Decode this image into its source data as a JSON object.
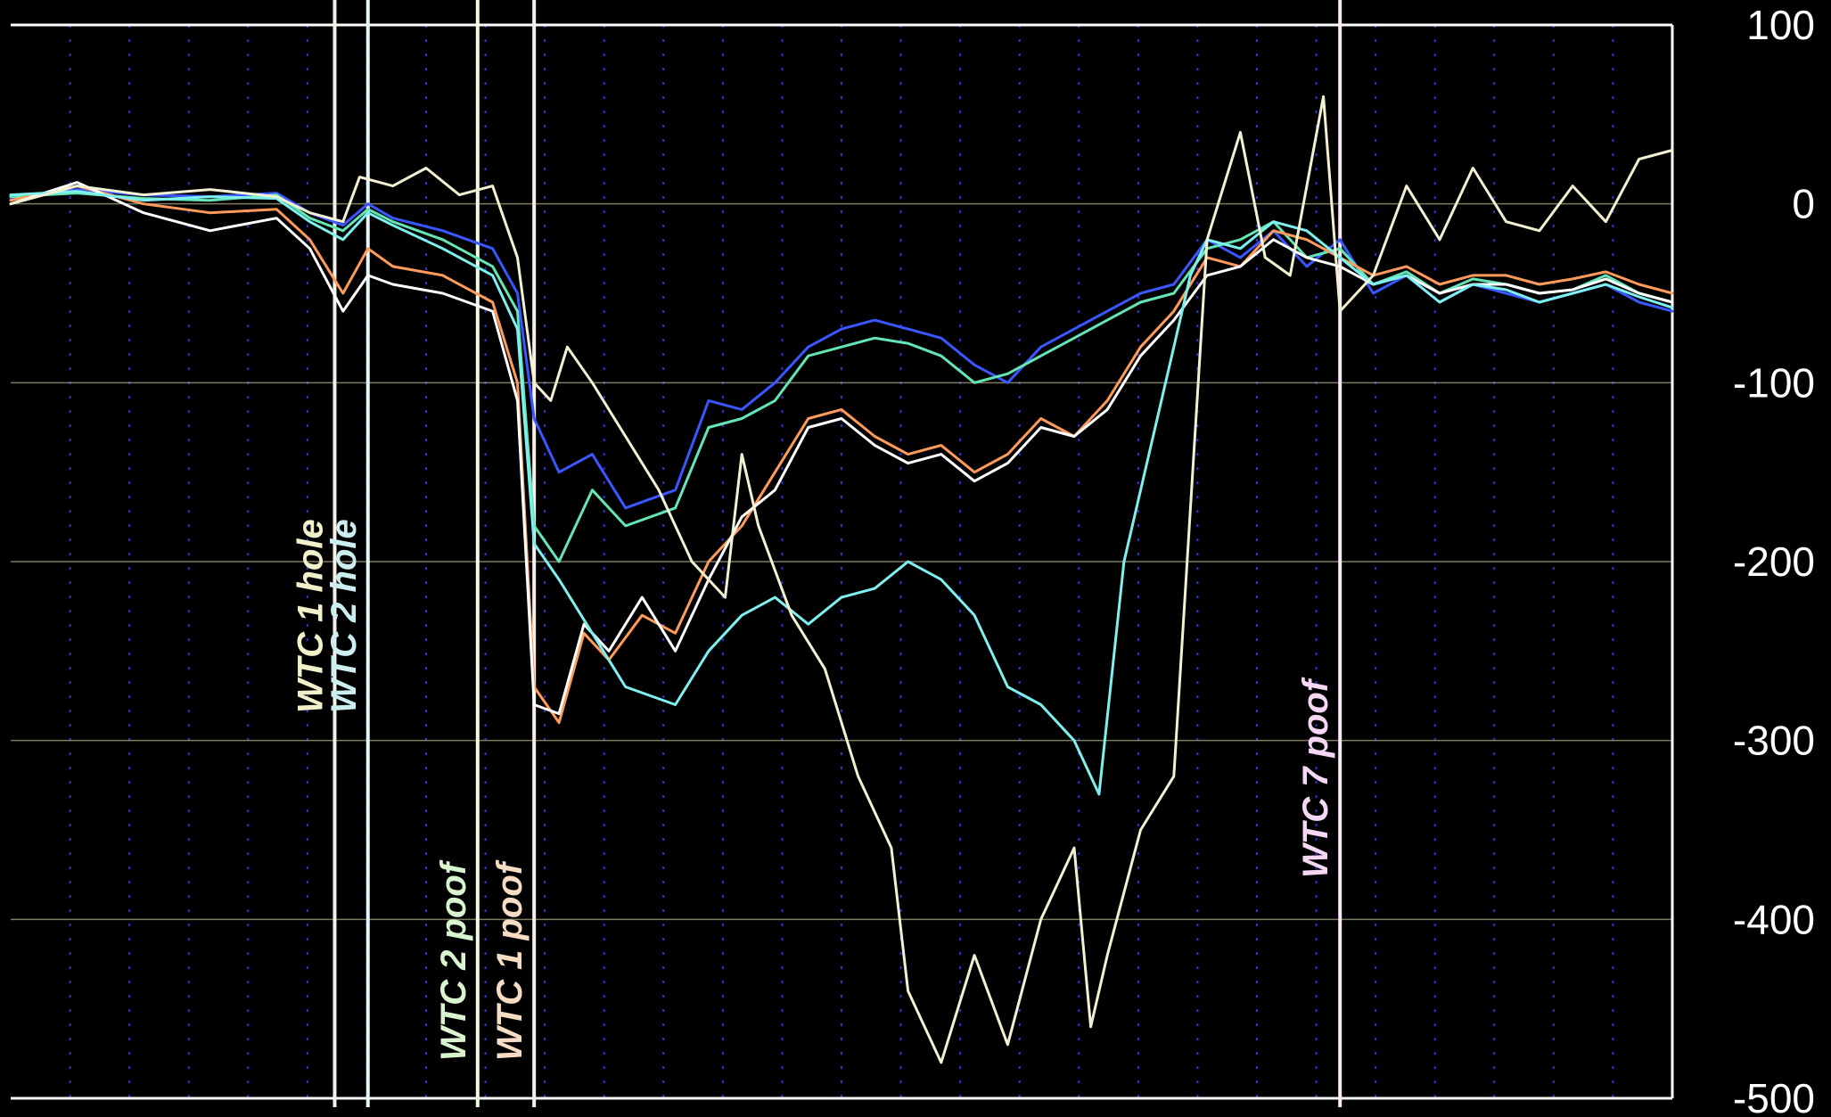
{
  "chart_data": {
    "type": "line",
    "title": "",
    "xlabel": "",
    "ylabel": "",
    "ylim": [
      -500,
      100
    ],
    "y_ticks": [
      "100",
      "0",
      "-100",
      "-200",
      "-300",
      "-400",
      "-500"
    ],
    "y_axis_position": "right",
    "grid": true,
    "background_color": "#000000",
    "x_domain": [
      0,
      1000
    ],
    "events": [
      {
        "label": "WTC 1 hole",
        "x": 195,
        "color": "#f2f0c8",
        "line_color": "#f4f2e8"
      },
      {
        "label": "WTC 2 hole",
        "x": 215,
        "color": "#cdeef0",
        "line_color": "#e4f6f6"
      },
      {
        "label": "WTC 2 poof",
        "x": 281,
        "color": "#d8f5d0",
        "line_color": "#f0fae8"
      },
      {
        "label": "WTC 1 poof",
        "x": 315,
        "color": "#f7dcc4",
        "line_color": "#f8f0e8"
      },
      {
        "label": "WTC 7 poof",
        "x": 800,
        "color": "#f5d6f5",
        "line_color": "#fbe6fb"
      }
    ],
    "series": [
      {
        "color": "#3a56ff",
        "points": [
          [
            0,
            3
          ],
          [
            40,
            8
          ],
          [
            80,
            5
          ],
          [
            120,
            4
          ],
          [
            160,
            6
          ],
          [
            180,
            -5
          ],
          [
            200,
            -12
          ],
          [
            215,
            0
          ],
          [
            230,
            -8
          ],
          [
            260,
            -15
          ],
          [
            290,
            -25
          ],
          [
            305,
            -50
          ],
          [
            315,
            -120
          ],
          [
            330,
            -150
          ],
          [
            350,
            -140
          ],
          [
            370,
            -170
          ],
          [
            400,
            -160
          ],
          [
            420,
            -110
          ],
          [
            440,
            -115
          ],
          [
            460,
            -100
          ],
          [
            480,
            -80
          ],
          [
            500,
            -70
          ],
          [
            520,
            -65
          ],
          [
            540,
            -70
          ],
          [
            560,
            -75
          ],
          [
            580,
            -90
          ],
          [
            600,
            -100
          ],
          [
            620,
            -80
          ],
          [
            640,
            -70
          ],
          [
            660,
            -60
          ],
          [
            680,
            -50
          ],
          [
            700,
            -45
          ],
          [
            720,
            -20
          ],
          [
            740,
            -30
          ],
          [
            760,
            -15
          ],
          [
            780,
            -35
          ],
          [
            800,
            -20
          ],
          [
            820,
            -50
          ],
          [
            840,
            -40
          ],
          [
            860,
            -55
          ],
          [
            880,
            -45
          ],
          [
            900,
            -50
          ],
          [
            920,
            -55
          ],
          [
            940,
            -50
          ],
          [
            960,
            -45
          ],
          [
            980,
            -55
          ],
          [
            1000,
            -60
          ]
        ]
      },
      {
        "color": "#64e6b4",
        "points": [
          [
            0,
            4
          ],
          [
            40,
            6
          ],
          [
            80,
            3
          ],
          [
            120,
            2
          ],
          [
            160,
            5
          ],
          [
            180,
            -8
          ],
          [
            200,
            -15
          ],
          [
            215,
            -3
          ],
          [
            230,
            -10
          ],
          [
            260,
            -20
          ],
          [
            290,
            -35
          ],
          [
            305,
            -60
          ],
          [
            315,
            -180
          ],
          [
            330,
            -200
          ],
          [
            350,
            -160
          ],
          [
            370,
            -180
          ],
          [
            400,
            -170
          ],
          [
            420,
            -125
          ],
          [
            440,
            -120
          ],
          [
            460,
            -110
          ],
          [
            480,
            -85
          ],
          [
            500,
            -80
          ],
          [
            520,
            -75
          ],
          [
            540,
            -78
          ],
          [
            560,
            -85
          ],
          [
            580,
            -100
          ],
          [
            600,
            -95
          ],
          [
            620,
            -85
          ],
          [
            640,
            -75
          ],
          [
            660,
            -65
          ],
          [
            680,
            -55
          ],
          [
            700,
            -50
          ],
          [
            720,
            -25
          ],
          [
            740,
            -20
          ],
          [
            760,
            -10
          ],
          [
            780,
            -30
          ],
          [
            800,
            -25
          ],
          [
            820,
            -45
          ],
          [
            840,
            -38
          ],
          [
            860,
            -50
          ],
          [
            880,
            -42
          ],
          [
            900,
            -45
          ],
          [
            920,
            -50
          ],
          [
            940,
            -48
          ],
          [
            960,
            -40
          ],
          [
            980,
            -50
          ],
          [
            1000,
            -55
          ]
        ]
      },
      {
        "color": "#ff9b5a",
        "points": [
          [
            0,
            2
          ],
          [
            40,
            10
          ],
          [
            80,
            0
          ],
          [
            120,
            -5
          ],
          [
            160,
            -3
          ],
          [
            180,
            -20
          ],
          [
            200,
            -50
          ],
          [
            215,
            -25
          ],
          [
            230,
            -35
          ],
          [
            260,
            -40
          ],
          [
            290,
            -55
          ],
          [
            305,
            -100
          ],
          [
            315,
            -270
          ],
          [
            330,
            -290
          ],
          [
            345,
            -240
          ],
          [
            360,
            -255
          ],
          [
            380,
            -230
          ],
          [
            400,
            -240
          ],
          [
            420,
            -200
          ],
          [
            440,
            -180
          ],
          [
            460,
            -150
          ],
          [
            480,
            -120
          ],
          [
            500,
            -115
          ],
          [
            520,
            -130
          ],
          [
            540,
            -140
          ],
          [
            560,
            -135
          ],
          [
            580,
            -150
          ],
          [
            600,
            -140
          ],
          [
            620,
            -120
          ],
          [
            640,
            -130
          ],
          [
            660,
            -110
          ],
          [
            680,
            -80
          ],
          [
            700,
            -60
          ],
          [
            720,
            -30
          ],
          [
            740,
            -35
          ],
          [
            760,
            -15
          ],
          [
            780,
            -20
          ],
          [
            800,
            -30
          ],
          [
            820,
            -40
          ],
          [
            840,
            -35
          ],
          [
            860,
            -45
          ],
          [
            880,
            -40
          ],
          [
            900,
            -40
          ],
          [
            920,
            -45
          ],
          [
            940,
            -42
          ],
          [
            960,
            -38
          ],
          [
            980,
            -45
          ],
          [
            1000,
            -50
          ]
        ]
      },
      {
        "color": "#ffffff",
        "points": [
          [
            0,
            0
          ],
          [
            40,
            12
          ],
          [
            80,
            -5
          ],
          [
            120,
            -15
          ],
          [
            160,
            -8
          ],
          [
            180,
            -25
          ],
          [
            200,
            -60
          ],
          [
            215,
            -40
          ],
          [
            230,
            -45
          ],
          [
            260,
            -50
          ],
          [
            290,
            -60
          ],
          [
            305,
            -110
          ],
          [
            315,
            -280
          ],
          [
            330,
            -285
          ],
          [
            345,
            -235
          ],
          [
            360,
            -250
          ],
          [
            380,
            -220
          ],
          [
            400,
            -250
          ],
          [
            420,
            -210
          ],
          [
            440,
            -175
          ],
          [
            460,
            -160
          ],
          [
            480,
            -125
          ],
          [
            500,
            -120
          ],
          [
            520,
            -135
          ],
          [
            540,
            -145
          ],
          [
            560,
            -140
          ],
          [
            580,
            -155
          ],
          [
            600,
            -145
          ],
          [
            620,
            -125
          ],
          [
            640,
            -130
          ],
          [
            660,
            -115
          ],
          [
            680,
            -85
          ],
          [
            700,
            -65
          ],
          [
            720,
            -40
          ],
          [
            740,
            -35
          ],
          [
            760,
            -20
          ],
          [
            780,
            -30
          ],
          [
            800,
            -35
          ],
          [
            820,
            -45
          ],
          [
            840,
            -40
          ],
          [
            860,
            -50
          ],
          [
            880,
            -45
          ],
          [
            900,
            -45
          ],
          [
            920,
            -50
          ],
          [
            940,
            -48
          ],
          [
            960,
            -42
          ],
          [
            980,
            -50
          ],
          [
            1000,
            -55
          ]
        ]
      },
      {
        "color": "#7ef0ef",
        "points": [
          [
            0,
            5
          ],
          [
            40,
            7
          ],
          [
            80,
            2
          ],
          [
            120,
            4
          ],
          [
            160,
            3
          ],
          [
            180,
            -10
          ],
          [
            200,
            -20
          ],
          [
            215,
            -5
          ],
          [
            230,
            -12
          ],
          [
            260,
            -25
          ],
          [
            290,
            -40
          ],
          [
            305,
            -70
          ],
          [
            315,
            -190
          ],
          [
            330,
            -210
          ],
          [
            350,
            -240
          ],
          [
            370,
            -270
          ],
          [
            400,
            -280
          ],
          [
            420,
            -250
          ],
          [
            440,
            -230
          ],
          [
            460,
            -220
          ],
          [
            480,
            -235
          ],
          [
            500,
            -220
          ],
          [
            520,
            -215
          ],
          [
            540,
            -200
          ],
          [
            560,
            -210
          ],
          [
            580,
            -230
          ],
          [
            600,
            -270
          ],
          [
            620,
            -280
          ],
          [
            640,
            -300
          ],
          [
            655,
            -330
          ],
          [
            670,
            -200
          ],
          [
            690,
            -120
          ],
          [
            710,
            -40
          ],
          [
            720,
            -20
          ],
          [
            740,
            -25
          ],
          [
            760,
            -10
          ],
          [
            780,
            -15
          ],
          [
            800,
            -30
          ],
          [
            820,
            -45
          ],
          [
            840,
            -40
          ],
          [
            860,
            -55
          ],
          [
            880,
            -45
          ],
          [
            900,
            -48
          ],
          [
            920,
            -55
          ],
          [
            940,
            -50
          ],
          [
            960,
            -45
          ],
          [
            980,
            -52
          ],
          [
            1000,
            -58
          ]
        ]
      },
      {
        "color": "#f4f1d2",
        "points": [
          [
            0,
            0
          ],
          [
            40,
            10
          ],
          [
            80,
            5
          ],
          [
            120,
            8
          ],
          [
            160,
            4
          ],
          [
            180,
            -5
          ],
          [
            200,
            -10
          ],
          [
            210,
            15
          ],
          [
            230,
            10
          ],
          [
            250,
            20
          ],
          [
            270,
            5
          ],
          [
            290,
            10
          ],
          [
            305,
            -30
          ],
          [
            315,
            -100
          ],
          [
            325,
            -110
          ],
          [
            335,
            -80
          ],
          [
            350,
            -100
          ],
          [
            370,
            -130
          ],
          [
            390,
            -160
          ],
          [
            410,
            -200
          ],
          [
            430,
            -220
          ],
          [
            440,
            -140
          ],
          [
            450,
            -180
          ],
          [
            470,
            -230
          ],
          [
            490,
            -260
          ],
          [
            510,
            -320
          ],
          [
            530,
            -360
          ],
          [
            540,
            -440
          ],
          [
            560,
            -480
          ],
          [
            580,
            -420
          ],
          [
            600,
            -470
          ],
          [
            620,
            -400
          ],
          [
            640,
            -360
          ],
          [
            650,
            -460
          ],
          [
            660,
            -420
          ],
          [
            680,
            -350
          ],
          [
            700,
            -320
          ],
          [
            720,
            -20
          ],
          [
            740,
            40
          ],
          [
            755,
            -30
          ],
          [
            770,
            -40
          ],
          [
            790,
            60
          ],
          [
            800,
            -60
          ],
          [
            820,
            -40
          ],
          [
            840,
            10
          ],
          [
            860,
            -20
          ],
          [
            880,
            20
          ],
          [
            900,
            -10
          ],
          [
            920,
            -15
          ],
          [
            940,
            10
          ],
          [
            960,
            -10
          ],
          [
            980,
            25
          ],
          [
            1000,
            30
          ]
        ]
      }
    ]
  }
}
